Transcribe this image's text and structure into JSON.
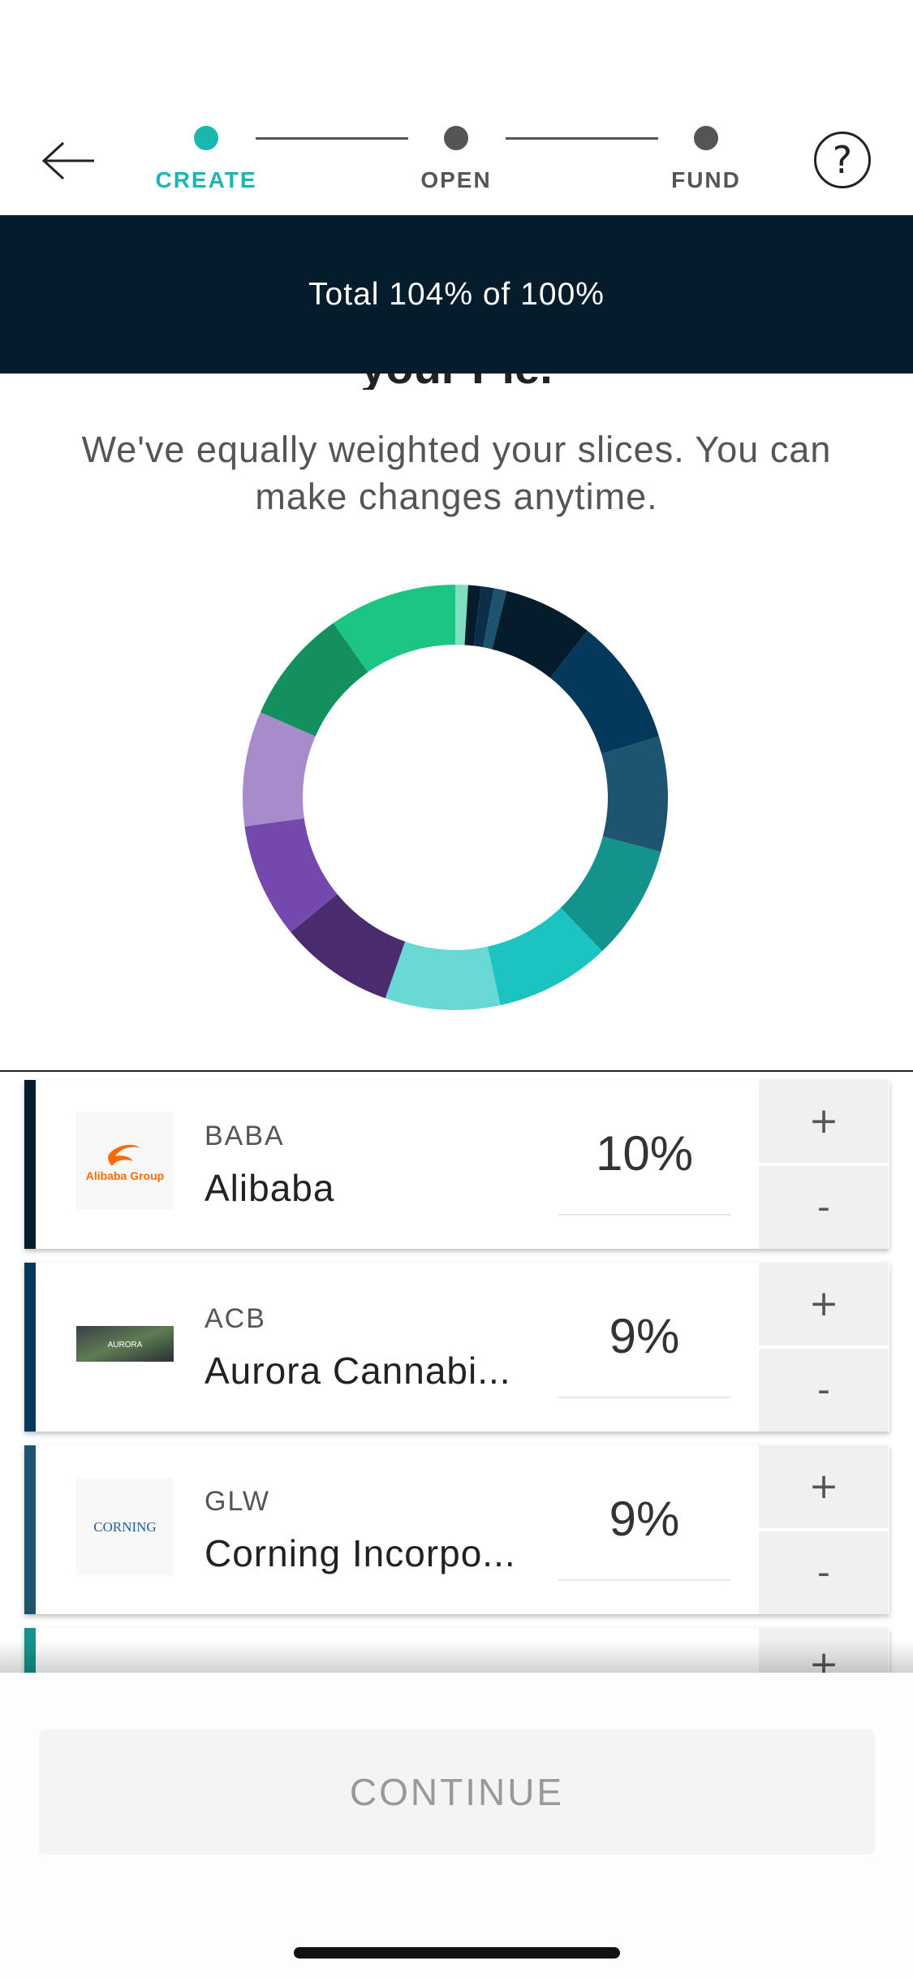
{
  "header": {
    "steps": [
      {
        "label": "CREATE",
        "color": "#1ab7b0"
      },
      {
        "label": "OPEN",
        "color": "#555555"
      },
      {
        "label": "FUND",
        "color": "#555555"
      }
    ],
    "help_icon": "question-circle-icon",
    "back_icon": "arrow-left-icon"
  },
  "banner": {
    "text": "Total 104% of 100%"
  },
  "heading": {
    "text": "your Pie."
  },
  "subtitle": "We've equally weighted your slices. You can make changes anytime.",
  "donut": {
    "slices": [
      {
        "value": 1,
        "color": "#7de0c0"
      },
      {
        "value": 1,
        "color": "#041c2c"
      },
      {
        "value": 1,
        "color": "#0b2f48"
      },
      {
        "value": 1,
        "color": "#1e5370"
      },
      {
        "value": 7,
        "color": "#041c2c"
      },
      {
        "value": 10,
        "color": "#04395c"
      },
      {
        "value": 9,
        "color": "#1e5470"
      },
      {
        "value": 9,
        "color": "#14938d"
      },
      {
        "value": 9,
        "color": "#1cc4c1"
      },
      {
        "value": 9,
        "color": "#6ad9d6"
      },
      {
        "value": 9,
        "color": "#4a2c6e"
      },
      {
        "value": 9,
        "color": "#7448ac"
      },
      {
        "value": 9,
        "color": "#a88bcb"
      },
      {
        "value": 9,
        "color": "#13905e"
      },
      {
        "value": 10,
        "color": "#1cc583"
      }
    ]
  },
  "holdings": [
    {
      "ticker": "BABA",
      "name": "Alibaba",
      "percent": "10%",
      "color": "#041c2c",
      "logo_text": "Alibaba Group"
    },
    {
      "ticker": "ACB",
      "name": "Aurora Cannabi...",
      "percent": "9%",
      "color": "#04395c",
      "logo_text": "AURORA"
    },
    {
      "ticker": "GLW",
      "name": "Corning Incorpo...",
      "percent": "9%",
      "color": "#1e5470",
      "logo_text": "CORNING"
    },
    {
      "ticker": "",
      "name": "",
      "percent": "",
      "color": "#14938d",
      "logo_text": ""
    }
  ],
  "controls": {
    "plus": "+",
    "minus": "-"
  },
  "continue_label": "CONTINUE"
}
